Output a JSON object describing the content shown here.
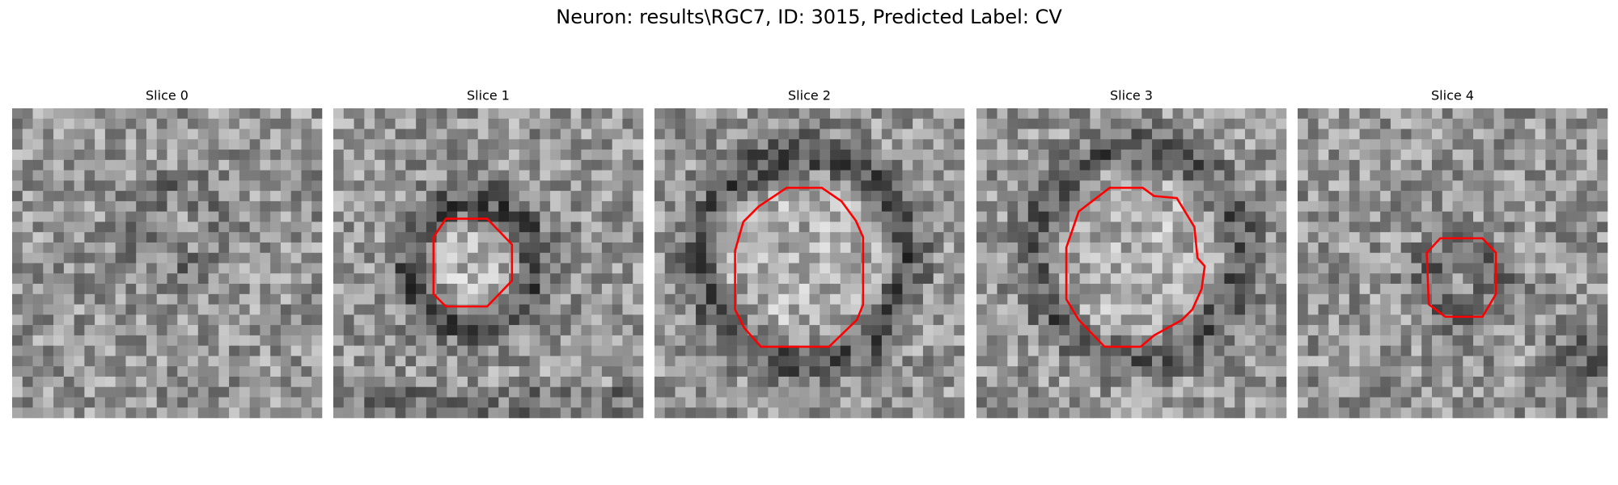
{
  "title": "Neuron: results\\RGC7, ID: 3015, Predicted Label: CV",
  "panels": [
    {
      "title": "Slice 0"
    },
    {
      "title": "Slice 1"
    },
    {
      "title": "Slice 2"
    },
    {
      "title": "Slice 3"
    },
    {
      "title": "Slice 4"
    }
  ]
}
